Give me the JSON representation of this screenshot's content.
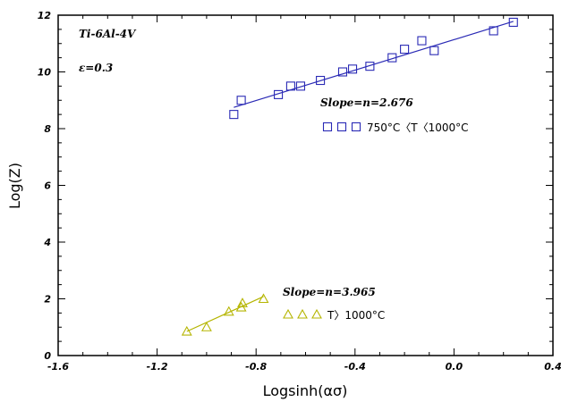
{
  "chart_data": {
    "type": "scatter",
    "xlabel": "Logsinh(ασ)",
    "ylabel": "Log(Z)",
    "xlim": [
      -1.6,
      0.4
    ],
    "ylim": [
      0,
      12
    ],
    "x_ticks": [
      -1.6,
      -1.2,
      -0.8,
      -0.4,
      0.0,
      0.4
    ],
    "x_tick_labels": [
      "-1.6",
      "-1.2",
      "-0.8",
      "-0.4",
      "0.0",
      "0.4"
    ],
    "y_ticks": [
      0,
      2,
      4,
      6,
      8,
      10,
      12
    ],
    "y_tick_labels": [
      "0",
      "2",
      "4",
      "6",
      "8",
      "10",
      "12"
    ],
    "grid": false,
    "annotations": [
      {
        "text": "Ti-6Al-4V",
        "x": -1.5,
        "y": 11.4
      },
      {
        "text": "ε=0.3",
        "x": -1.5,
        "y": 10.2
      },
      {
        "text": "Slope=n=2.676",
        "x": -0.7,
        "y": 8.8
      },
      {
        "text": "Slope=n=3.965",
        "x": -0.74,
        "y": 2.15
      }
    ],
    "series": [
      {
        "name": "750°C〈T〈1000°C",
        "marker": "square",
        "color": "#2a2ab5",
        "x": [
          -0.89,
          -0.86,
          -0.71,
          -0.66,
          -0.62,
          -0.54,
          -0.45,
          -0.41,
          -0.34,
          -0.25,
          -0.2,
          -0.13,
          -0.08,
          0.16,
          0.24
        ],
        "y": [
          8.5,
          9.0,
          9.2,
          9.5,
          9.5,
          9.7,
          10.0,
          10.1,
          10.2,
          10.5,
          10.8,
          11.1,
          10.75,
          11.45,
          11.75
        ],
        "fit": {
          "x": [
            -0.89,
            0.24
          ],
          "y": [
            8.75,
            11.78
          ]
        }
      },
      {
        "name": "T〉1000°C",
        "marker": "triangle",
        "color": "#b5b500",
        "x": [
          -1.08,
          -1.0,
          -0.91,
          -0.86,
          -0.855,
          -0.77
        ],
        "y": [
          0.85,
          1.0,
          1.55,
          1.7,
          1.85,
          2.0
        ],
        "fit": {
          "x": [
            -1.08,
            -0.77
          ],
          "y": [
            0.85,
            2.08
          ]
        }
      }
    ]
  }
}
